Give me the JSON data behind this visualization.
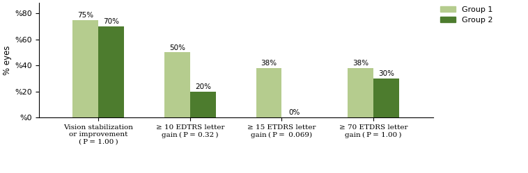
{
  "categories": [
    "Vision stabilization\nor improvement\n( P = 1.00 )",
    "≥ 10 EDTRS letter\ngain ( P = 0.32 )",
    "≥ 15 ETDRS letter\ngain ( P =  0.069)",
    "≥ 70 ETDRS letter\ngain ( P = 1.00 )"
  ],
  "group1_values": [
    75,
    50,
    38,
    38
  ],
  "group2_values": [
    70,
    20,
    0,
    30
  ],
  "group1_color": "#b5cc8e",
  "group2_color": "#4d7c2e",
  "ylabel": "% eyes",
  "yticks": [
    0,
    20,
    40,
    60,
    80
  ],
  "yticklabels": [
    "%0",
    "%20",
    "%40",
    "%60",
    "%80"
  ],
  "bar_width": 0.28,
  "legend_labels": [
    "Group 1",
    "Group 2"
  ],
  "figsize": [
    7.58,
    2.49
  ],
  "dpi": 100
}
